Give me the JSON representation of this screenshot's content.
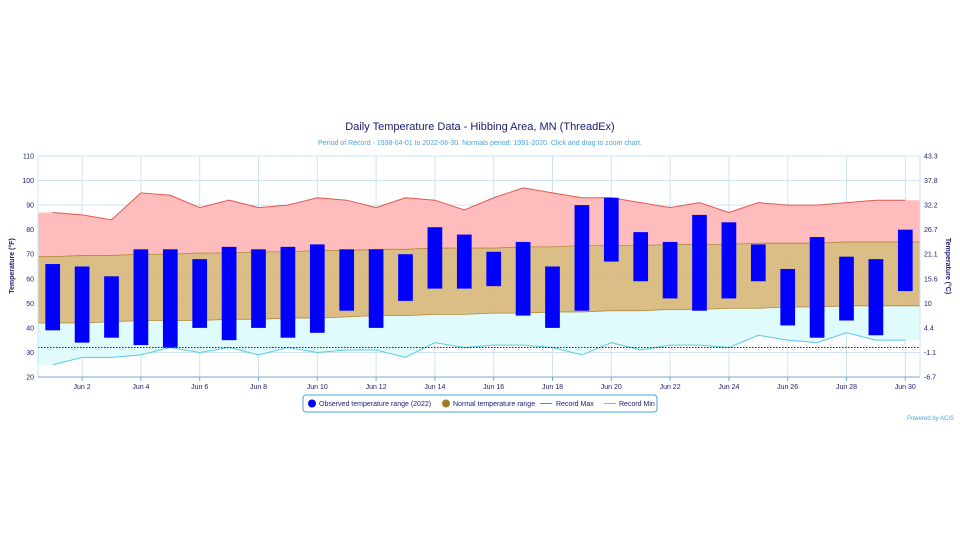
{
  "chart_data": {
    "type": "bar",
    "title": "Daily Temperature Data - Hibbing Area, MN (ThreadEx)",
    "subtitle": "Period of Record - 1938-04-01 to 2022-06-30. Normals period: 1991-2020. Click and drag to zoom chart.",
    "ylabel": "Temperature (°F)",
    "y2label": "Temperature (°C)",
    "ylim": [
      20,
      110
    ],
    "y_ticks": [
      20,
      30,
      40,
      50,
      60,
      70,
      80,
      90,
      100,
      110
    ],
    "y2_tick_labels": [
      "-6.7",
      "-1.1",
      "4.4",
      "10",
      "15.6",
      "21.1",
      "26.7",
      "32.2",
      "37.8",
      "43.3"
    ],
    "x_days": [
      1,
      2,
      3,
      4,
      5,
      6,
      7,
      8,
      9,
      10,
      11,
      12,
      13,
      14,
      15,
      16,
      17,
      18,
      19,
      20,
      21,
      22,
      23,
      24,
      25,
      26,
      27,
      28,
      29,
      30
    ],
    "x_tick_labels": [
      "Jun 2",
      "Jun 4",
      "Jun 6",
      "Jun 8",
      "Jun 10",
      "Jun 12",
      "Jun 14",
      "Jun 16",
      "Jun 18",
      "Jun 20",
      "Jun 22",
      "Jun 24",
      "Jun 26",
      "Jun 28",
      "Jun 30"
    ],
    "x_tick_days": [
      2,
      4,
      6,
      8,
      10,
      12,
      14,
      16,
      18,
      20,
      22,
      24,
      26,
      28,
      30
    ],
    "grid": true,
    "freezing_line_f": 32,
    "series": [
      {
        "name": "Observed temperature range (2022)",
        "kind": "floating-bar",
        "color": "#0000ff",
        "low": [
          39,
          34,
          36,
          33,
          32,
          40,
          35,
          40,
          36,
          38,
          47,
          40,
          51,
          56,
          56,
          57,
          45,
          40,
          47,
          67,
          59,
          52,
          47,
          52,
          59,
          41,
          36,
          43,
          37,
          55
        ],
        "high": [
          66,
          65,
          61,
          72,
          72,
          68,
          73,
          72,
          73,
          74,
          72,
          72,
          70,
          81,
          78,
          71,
          75,
          65,
          90,
          93,
          79,
          75,
          86,
          83,
          74,
          64,
          77,
          69,
          68,
          80
        ]
      },
      {
        "name": "Normal temperature range",
        "kind": "area-range",
        "color": "#b8860b",
        "low": [
          42,
          42,
          42.5,
          43,
          43,
          43,
          43.5,
          43.5,
          44,
          44,
          44.5,
          45,
          45,
          45.5,
          45.5,
          46,
          46,
          46.5,
          46.5,
          47,
          47,
          47.5,
          47.5,
          48,
          48,
          48.5,
          48.5,
          49,
          49,
          49
        ],
        "high": [
          69,
          69.5,
          69.5,
          70,
          70,
          70.5,
          70.5,
          71,
          71,
          71.5,
          71.5,
          72,
          72,
          72.5,
          72.5,
          72.5,
          73,
          73,
          73.5,
          73.5,
          73.5,
          74,
          74,
          74,
          74.5,
          74.5,
          74.5,
          75,
          75,
          75
        ]
      },
      {
        "name": "Record Max",
        "kind": "line",
        "color": "#e05a4f",
        "values": [
          87,
          86,
          84,
          95,
          94,
          89,
          92,
          89,
          90,
          93,
          92,
          89,
          93,
          92,
          88,
          93,
          97,
          95,
          93,
          93,
          91,
          89,
          91,
          87,
          91,
          90,
          90,
          91,
          92,
          92
        ]
      },
      {
        "name": "Record Min",
        "kind": "line",
        "color": "#5ac8e8",
        "values": [
          25,
          28,
          28,
          29,
          32,
          30,
          32,
          29,
          32,
          30,
          31,
          31,
          28,
          34,
          32,
          33,
          33,
          32,
          29,
          34,
          31,
          33,
          33,
          32,
          37,
          35,
          34,
          38,
          35,
          35
        ]
      }
    ],
    "legend_position": "bottom-center",
    "credit": "Powered by ACIS"
  }
}
